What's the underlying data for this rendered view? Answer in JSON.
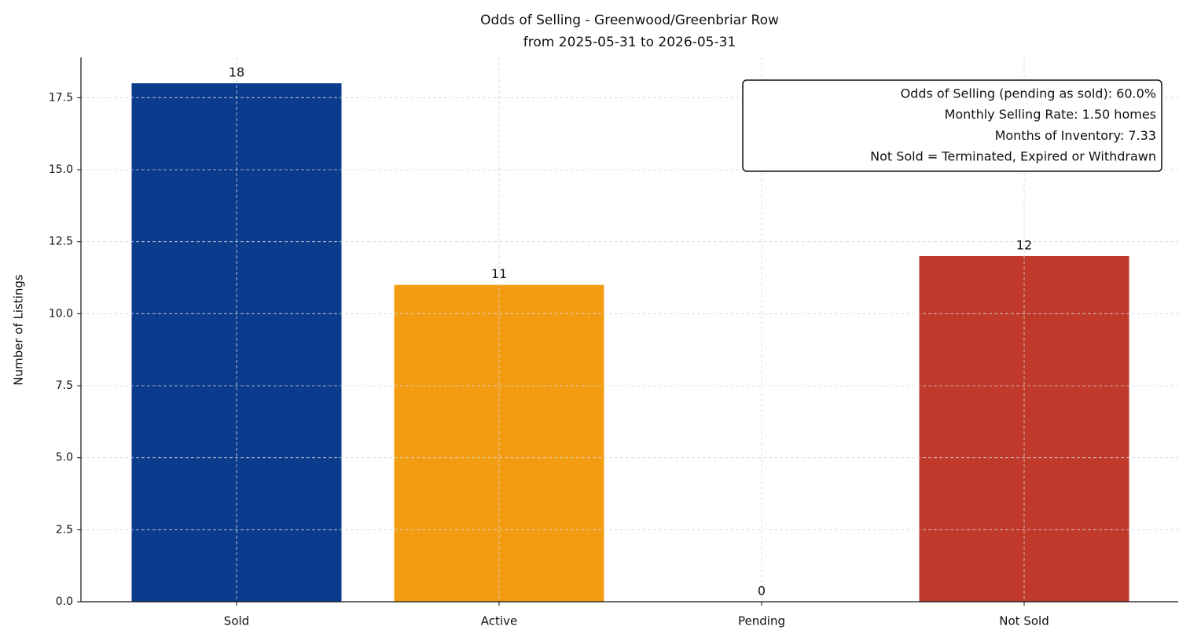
{
  "chart_data": {
    "type": "bar",
    "title": "Odds of Selling - Greenwood/Greenbriar Row",
    "subtitle": "from 2025-05-31 to 2026-05-31",
    "y_label": "Number of Listings",
    "categories": [
      "Sold",
      "Active",
      "Pending",
      "Not Sold"
    ],
    "values": [
      18,
      11,
      0,
      12
    ],
    "colors": [
      "#0b3b8c",
      "#f39c12",
      null,
      "#c0392b"
    ],
    "ylim": [
      0,
      18.9
    ],
    "yticks": [
      {
        "value": 0,
        "label": "0.0"
      },
      2.5,
      {
        "value": 5,
        "label": "5.0"
      },
      7.5,
      {
        "value": 10,
        "label": "10.0"
      },
      12.5,
      {
        "value": 15,
        "label": "15.0"
      },
      17.5
    ],
    "grid": true,
    "annotation_lines": [
      "Odds of Selling (pending as sold): 60.0%",
      "Monthly Selling Rate: 1.50 homes",
      "Months of Inventory: 7.33",
      "Not Sold = Terminated, Expired or Withdrawn"
    ]
  }
}
